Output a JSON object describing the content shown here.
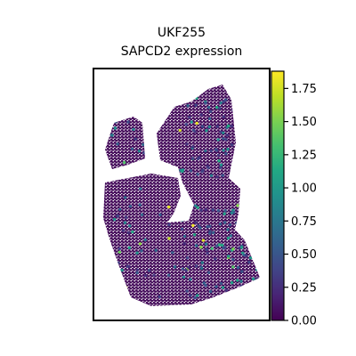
{
  "chart_data": {
    "type": "scatter",
    "plot_kind": "spatial hexbin",
    "title_line1": "UKF255",
    "title_line2": "SAPCD2 expression",
    "xlabel": "",
    "ylabel": "",
    "axis_ticks_visible": false,
    "grid": false,
    "colormap": "viridis",
    "colorbar": {
      "vmin": 0.0,
      "vmax": 1.88,
      "ticks": [
        "0.00",
        "0.25",
        "0.50",
        "0.75",
        "1.00",
        "1.25",
        "1.50",
        "1.75"
      ],
      "tick_values": [
        0.0,
        0.25,
        0.5,
        0.75,
        1.0,
        1.25,
        1.5,
        1.75
      ],
      "placement": "right"
    },
    "value_distribution_note": "mostly near 0 with scattered spots up to ~1.8",
    "colors": {
      "low": "#440154",
      "mid": "#21918c",
      "high": "#fde725"
    }
  }
}
